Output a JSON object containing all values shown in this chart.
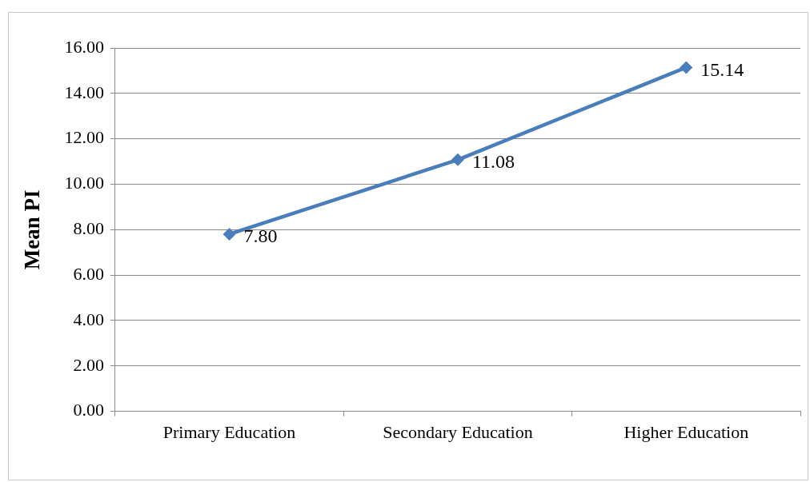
{
  "chart_data": {
    "type": "line",
    "ylabel": "Mean PI",
    "categories": [
      "Primary Education",
      "Secondary Education",
      "Higher Education"
    ],
    "series": [
      {
        "color": "#4a7ebb",
        "values": [
          7.8,
          11.08,
          15.14
        ],
        "value_labels": [
          "7.80",
          "11.08",
          "15.14"
        ]
      }
    ],
    "ylim": [
      0,
      16
    ],
    "yticks": [
      {
        "value": 0,
        "label": "0.00"
      },
      {
        "value": 2,
        "label": "2.00"
      },
      {
        "value": 4,
        "label": "4.00"
      },
      {
        "value": 6,
        "label": "6.00"
      },
      {
        "value": 8,
        "label": "8.00"
      },
      {
        "value": 10,
        "label": "10.00"
      },
      {
        "value": 12,
        "label": "12.00"
      },
      {
        "value": 14,
        "label": "14.00"
      },
      {
        "value": 16,
        "label": "16.00"
      }
    ],
    "grid": "y",
    "legend": false,
    "marker": "diamond",
    "line_style": "solid"
  }
}
